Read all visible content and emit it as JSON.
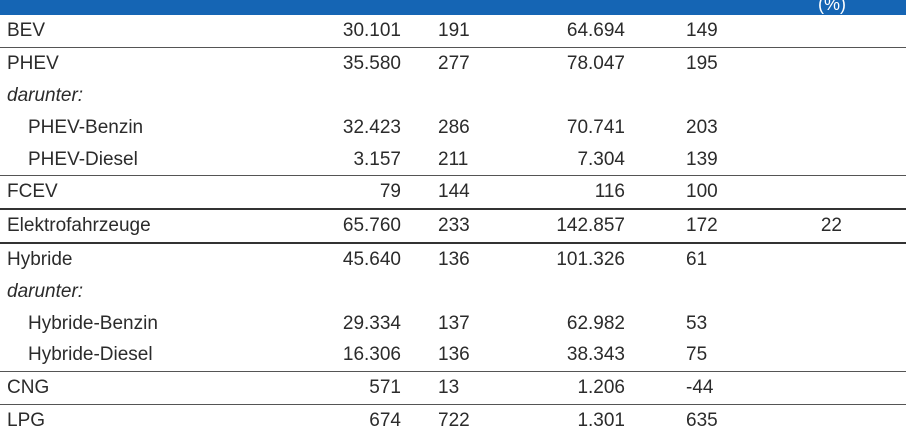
{
  "header": {
    "unit_label": "(%)"
  },
  "rows": [
    {
      "label": "BEV",
      "c2": "30.101",
      "c3": "191",
      "c4": "64.694",
      "c5": "149",
      "c6": ""
    },
    {
      "label": "PHEV",
      "c2": "35.580",
      "c3": "277",
      "c4": "78.047",
      "c5": "195",
      "c6": ""
    },
    {
      "label": "darunter:",
      "c2": "",
      "c3": "",
      "c4": "",
      "c5": "",
      "c6": ""
    },
    {
      "label": "PHEV-Benzin",
      "c2": "32.423",
      "c3": "286",
      "c4": "70.741",
      "c5": "203",
      "c6": ""
    },
    {
      "label": "PHEV-Diesel",
      "c2": "3.157",
      "c3": "211",
      "c4": "7.304",
      "c5": "139",
      "c6": ""
    },
    {
      "label": "FCEV",
      "c2": "79",
      "c3": "144",
      "c4": "116",
      "c5": "100",
      "c6": ""
    },
    {
      "label": "Elektrofahrzeuge",
      "c2": "65.760",
      "c3": "233",
      "c4": "142.857",
      "c5": "172",
      "c6": "22"
    },
    {
      "label": "Hybride",
      "c2": "45.640",
      "c3": "136",
      "c4": "101.326",
      "c5": "61",
      "c6": ""
    },
    {
      "label": "darunter:",
      "c2": "",
      "c3": "",
      "c4": "",
      "c5": "",
      "c6": ""
    },
    {
      "label": "Hybride-Benzin",
      "c2": "29.334",
      "c3": "137",
      "c4": "62.982",
      "c5": "53",
      "c6": ""
    },
    {
      "label": "Hybride-Diesel",
      "c2": "16.306",
      "c3": "136",
      "c4": "38.343",
      "c5": "75",
      "c6": ""
    },
    {
      "label": "CNG",
      "c2": "571",
      "c3": "13",
      "c4": "1.206",
      "c5": "-44",
      "c6": ""
    },
    {
      "label": "LPG",
      "c2": "674",
      "c3": "722",
      "c4": "1.301",
      "c5": "635",
      "c6": ""
    }
  ]
}
